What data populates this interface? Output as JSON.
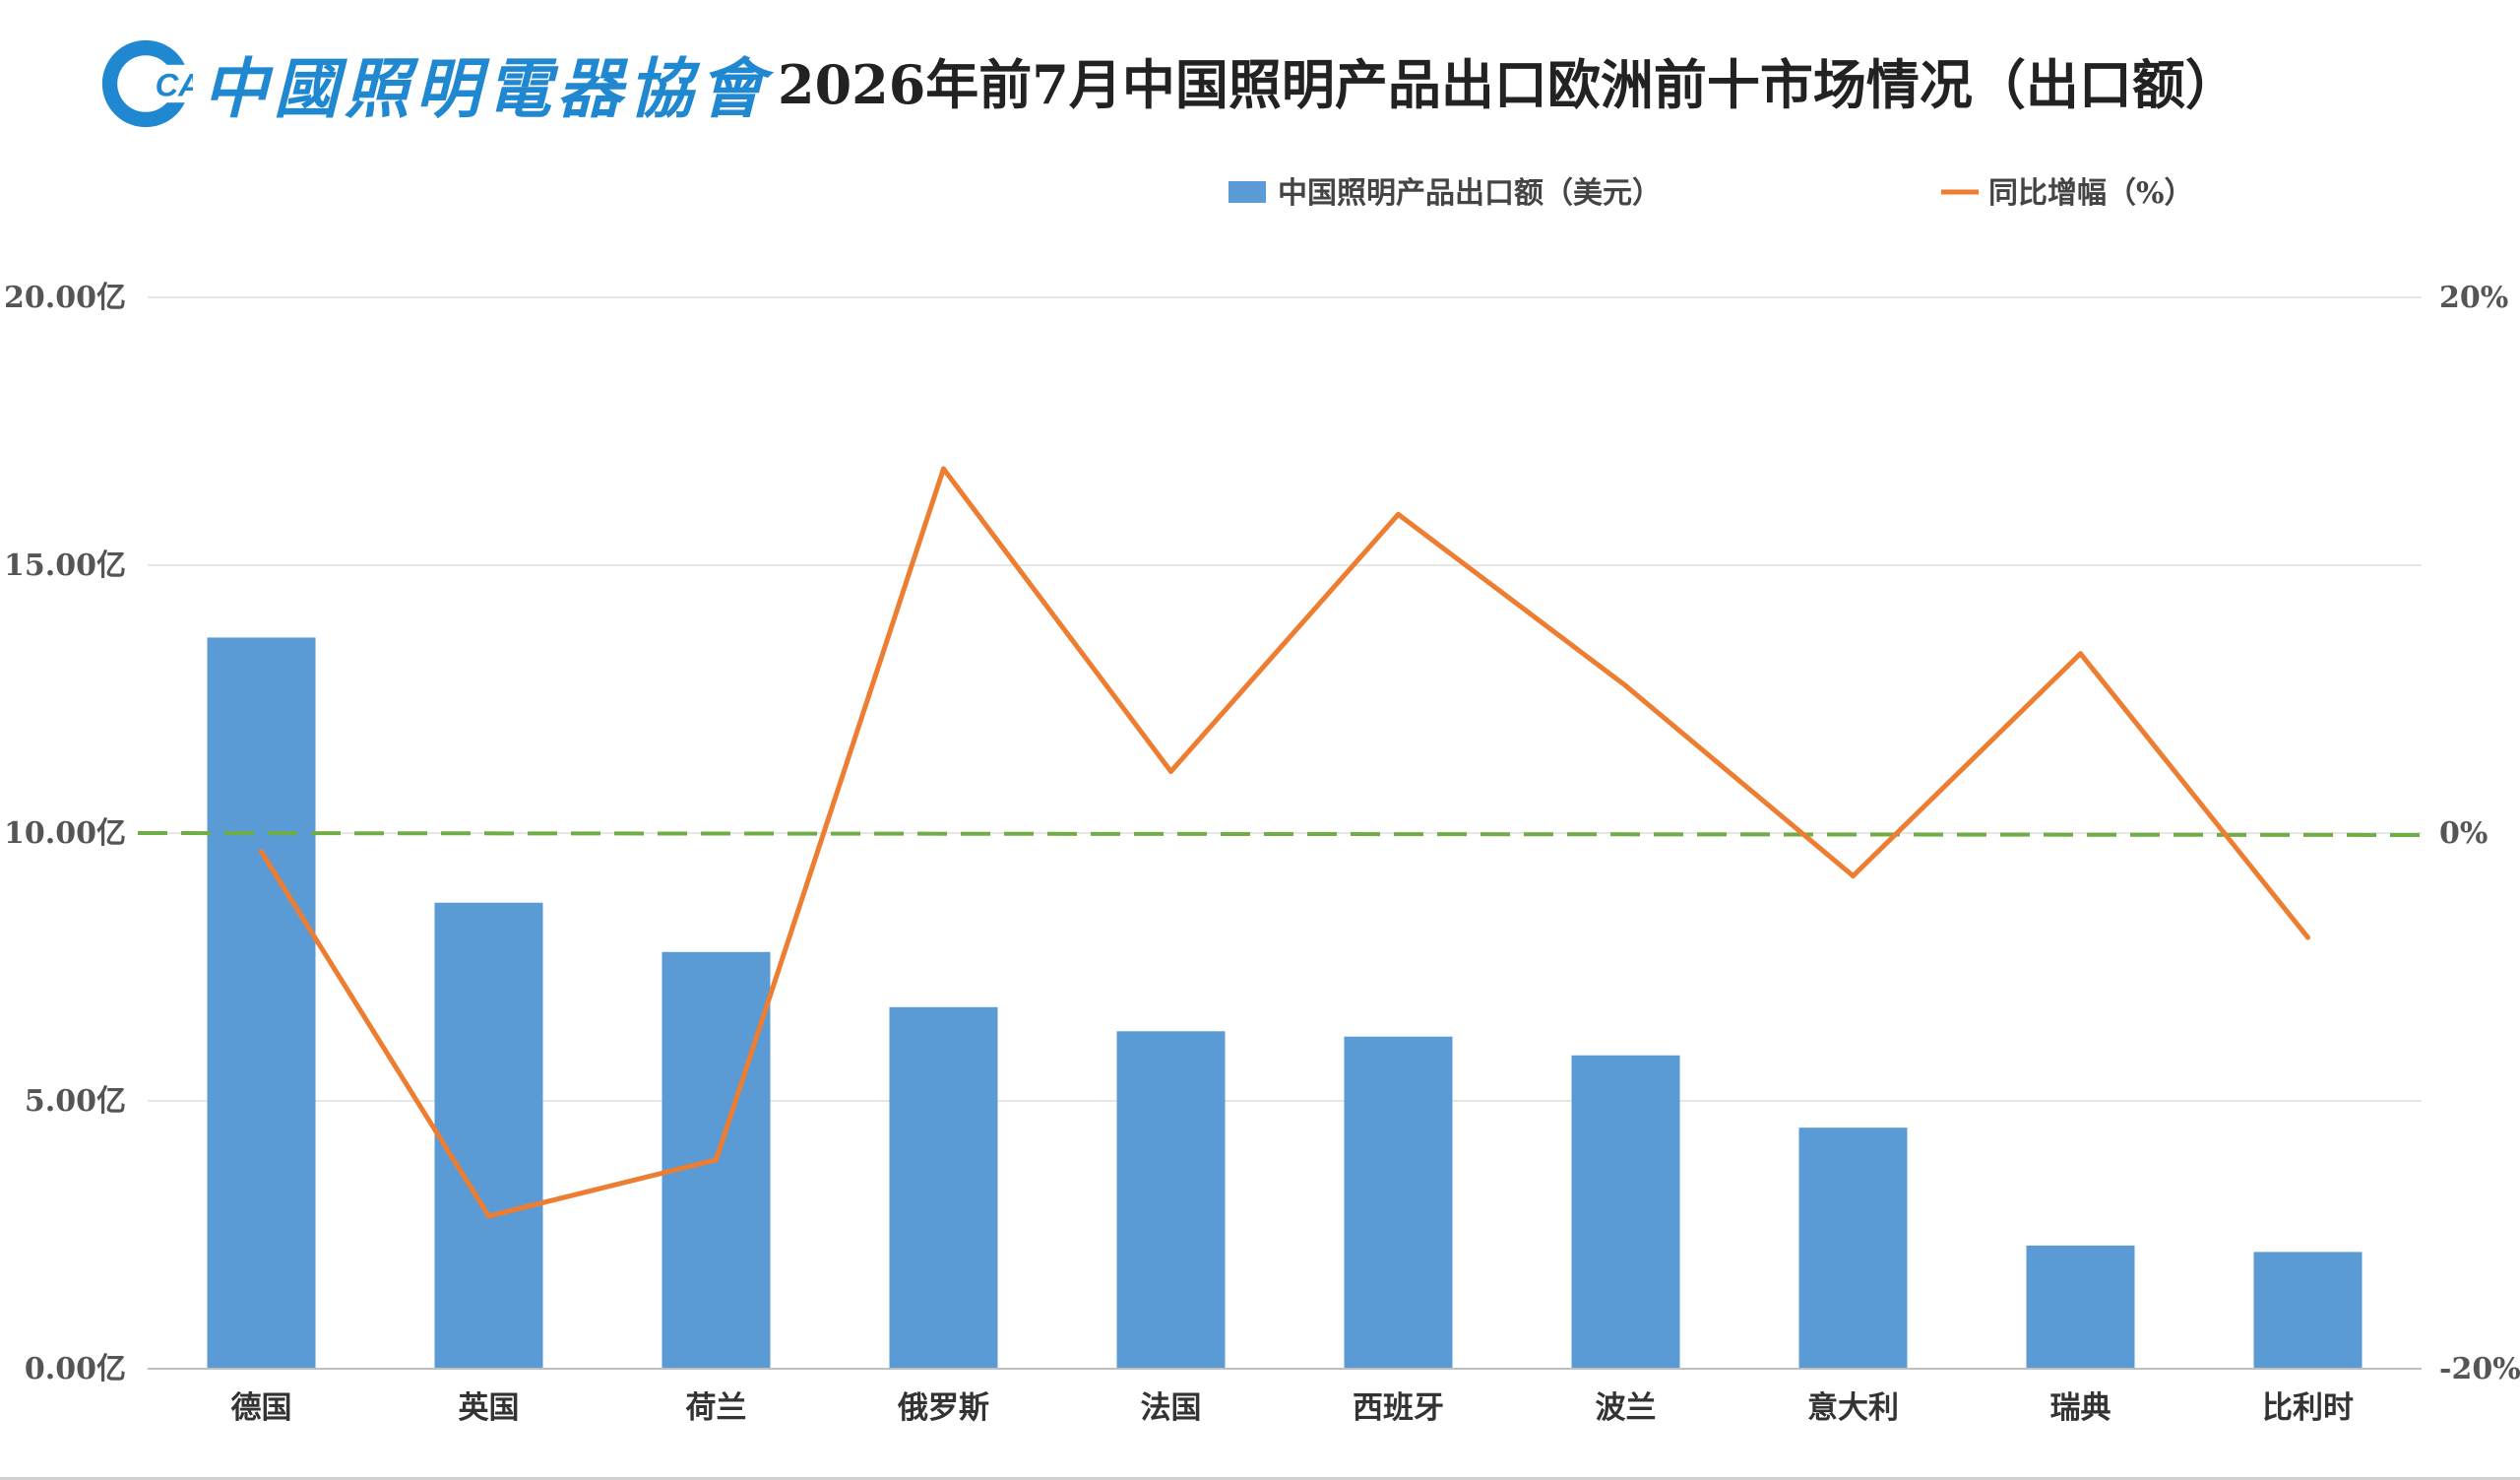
{
  "header": {
    "logo_text": "中國照明電器協會",
    "logo_mark": "CALI",
    "title": "2026年前7月中国照明产品出口欧洲前十市场情况（出口额）"
  },
  "colors": {
    "bar": "#5b9bd5",
    "line": "#ed7d31",
    "zero_line": "#70ad47",
    "logo": "#1f88d0",
    "grid": "#e6e6e6"
  },
  "chart_data": {
    "type": "bar",
    "categories": [
      "德国",
      "英国",
      "荷兰",
      "俄罗斯",
      "法国",
      "西班牙",
      "波兰",
      "意大利",
      "瑞典",
      "比利时"
    ],
    "series": [
      {
        "name": "中国照明产品出口额（美元）",
        "type": "bar",
        "axis": "left",
        "values": [
          13.65,
          8.7,
          7.78,
          6.75,
          6.3,
          6.2,
          5.85,
          4.5,
          2.3,
          2.18
        ]
      },
      {
        "name": "同比增幅（%）",
        "type": "line",
        "axis": "right",
        "values": [
          -0.7,
          -14.3,
          -12.2,
          13.6,
          2.3,
          11.9,
          5.5,
          -1.6,
          6.7,
          -3.9
        ]
      }
    ],
    "left_axis": {
      "ylim": [
        0,
        20
      ],
      "ticks": [
        0,
        5,
        10,
        15,
        20
      ],
      "tick_labels": [
        "0.00亿",
        "5.00亿",
        "10.00亿",
        "15.00亿",
        "20.00亿"
      ]
    },
    "right_axis": {
      "ylim": [
        -20,
        20
      ],
      "ticks": [
        -20,
        0,
        20
      ],
      "tick_labels": [
        "-20%",
        "0%",
        "20%"
      ]
    },
    "reference_line": {
      "axis": "right",
      "value": 0,
      "style": "dashed"
    },
    "grid": true,
    "legend_placement": "top-right",
    "xlabel": "",
    "ylabel": ""
  }
}
